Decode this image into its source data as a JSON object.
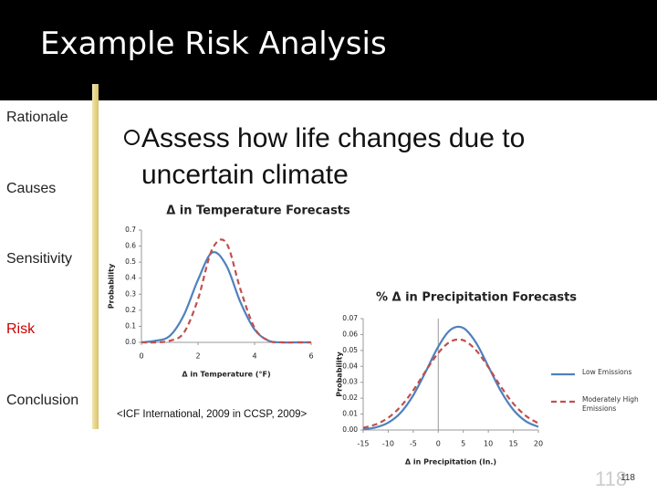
{
  "header": {
    "title": "Example Risk Analysis"
  },
  "nav": [
    {
      "label": "Rationale",
      "color": "#222222"
    },
    {
      "label": "Causes",
      "color": "#222222"
    },
    {
      "label": "Sensitivity",
      "color": "#222222"
    },
    {
      "label": "Risk",
      "color": "#cc0000"
    },
    {
      "label": "Conclusion",
      "color": "#222222"
    }
  ],
  "bullet": "Assess how life changes due to uncertain climate",
  "citation": "<ICF International, 2009 in CCSP, 2009>",
  "page_number": "118",
  "chart_data": [
    {
      "type": "line",
      "title": "Δ in Temperature Forecasts",
      "x_label": "Δ in Temperature (°F)",
      "y_label": "Probability",
      "x": [
        0,
        0.5,
        1,
        1.5,
        2,
        2.5,
        3,
        3.5,
        4,
        4.5,
        5,
        5.5,
        6
      ],
      "series": [
        {
          "color": "#4f81bd",
          "dashed": false,
          "values": [
            0,
            0.01,
            0.04,
            0.17,
            0.39,
            0.56,
            0.48,
            0.25,
            0.08,
            0.01,
            0,
            0,
            0
          ]
        },
        {
          "color": "#c0504d",
          "dashed": true,
          "values": [
            0,
            0,
            0.01,
            0.06,
            0.27,
            0.58,
            0.62,
            0.33,
            0.09,
            0.01,
            0,
            0,
            0
          ]
        }
      ],
      "xlim": [
        0,
        6
      ],
      "xticks": [
        0,
        2,
        4,
        6
      ],
      "ylim": [
        0,
        0.7
      ],
      "yticks": [
        {
          "value": 0,
          "label": "0.0"
        },
        0.1,
        0.2,
        0.3,
        0.4,
        0.5,
        0.6,
        0.7
      ],
      "zero_line": false
    },
    {
      "type": "line",
      "title": "% Δ in Precipitation Forecasts",
      "x_label": "Δ in Precipitation (In.)",
      "y_label": "Probability",
      "x": [
        -15,
        -12.5,
        -10,
        -7.5,
        -5,
        -2.5,
        0,
        2.5,
        5,
        7.5,
        10,
        12.5,
        15,
        17.5,
        20
      ],
      "series": [
        {
          "name": "Low Emissions",
          "color": "#4f81bd",
          "dashed": false,
          "values": [
            0.0005,
            0.0016,
            0.0046,
            0.0109,
            0.0218,
            0.0367,
            0.0524,
            0.0631,
            0.0641,
            0.0551,
            0.04,
            0.0245,
            0.0127,
            0.0055,
            0.002
          ]
        },
        {
          "name": "Moderately High Emissions",
          "color": "#c0504d",
          "dashed": true,
          "values": [
            0.0014,
            0.0035,
            0.0077,
            0.0148,
            0.0249,
            0.0371,
            0.0484,
            0.0557,
            0.0564,
            0.0503,
            0.0395,
            0.0273,
            0.0166,
            0.0089,
            0.0042
          ]
        }
      ],
      "xlim": [
        -15,
        20
      ],
      "xticks": [
        -15,
        -10,
        -5,
        0,
        5,
        10,
        15,
        20
      ],
      "ylim": [
        0,
        0.07
      ],
      "yticks": [
        {
          "value": 0,
          "label": "0.00"
        },
        {
          "value": 0.01,
          "label": "0.01"
        },
        {
          "value": 0.02,
          "label": "0.02"
        },
        {
          "value": 0.03,
          "label": "0.03"
        },
        {
          "value": 0.04,
          "label": "0.04"
        },
        {
          "value": 0.05,
          "label": "0.05"
        },
        {
          "value": 0.06,
          "label": "0.06"
        },
        {
          "value": 0.07,
          "label": "0.07"
        }
      ],
      "zero_line": true,
      "legend": "right"
    }
  ]
}
